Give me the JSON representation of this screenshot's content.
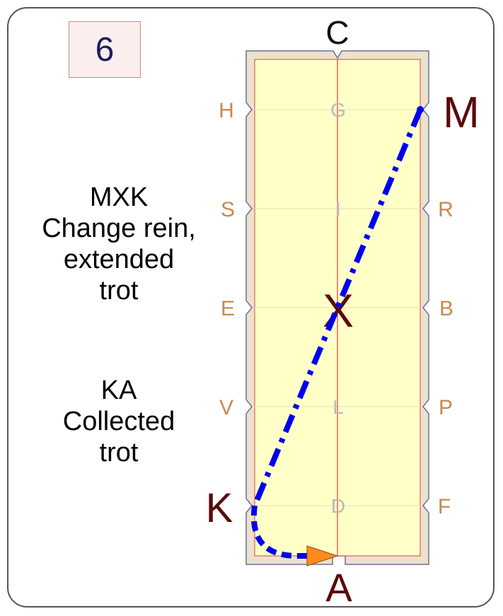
{
  "badge": {
    "number": "6"
  },
  "instructions": [
    {
      "lines": [
        "MXK",
        "Change rein,",
        "extended",
        "trot"
      ]
    },
    {
      "lines": [
        "KA",
        "Collected",
        "trot"
      ]
    }
  ],
  "arena": {
    "end_markers": {
      "top": "C",
      "bottom": "A"
    },
    "left_markers": [
      "H",
      "S",
      "E",
      "V",
      "K"
    ],
    "right_markers": [
      "M",
      "R",
      "B",
      "P",
      "F"
    ],
    "center_markers": [
      "G",
      "I",
      "X",
      "L",
      "D"
    ],
    "highlighted_markers": [
      "M",
      "X",
      "K",
      "A"
    ]
  },
  "route": {
    "segments": [
      {
        "from": "M",
        "to": "X",
        "to2": "K",
        "style": "dash-dot",
        "gait": "extended trot"
      },
      {
        "from": "K",
        "to": "A",
        "style": "dashed",
        "gait": "collected trot"
      }
    ],
    "colors": {
      "path": "#0000ee",
      "arrow": "#ff8c1a"
    }
  },
  "colors": {
    "arena_fill": "#ffffc8",
    "arena_frame": "#ebe2cc",
    "centerline": "#e04040",
    "side_letter": "#c58a4e",
    "key_letter": "#5a0a0a"
  }
}
